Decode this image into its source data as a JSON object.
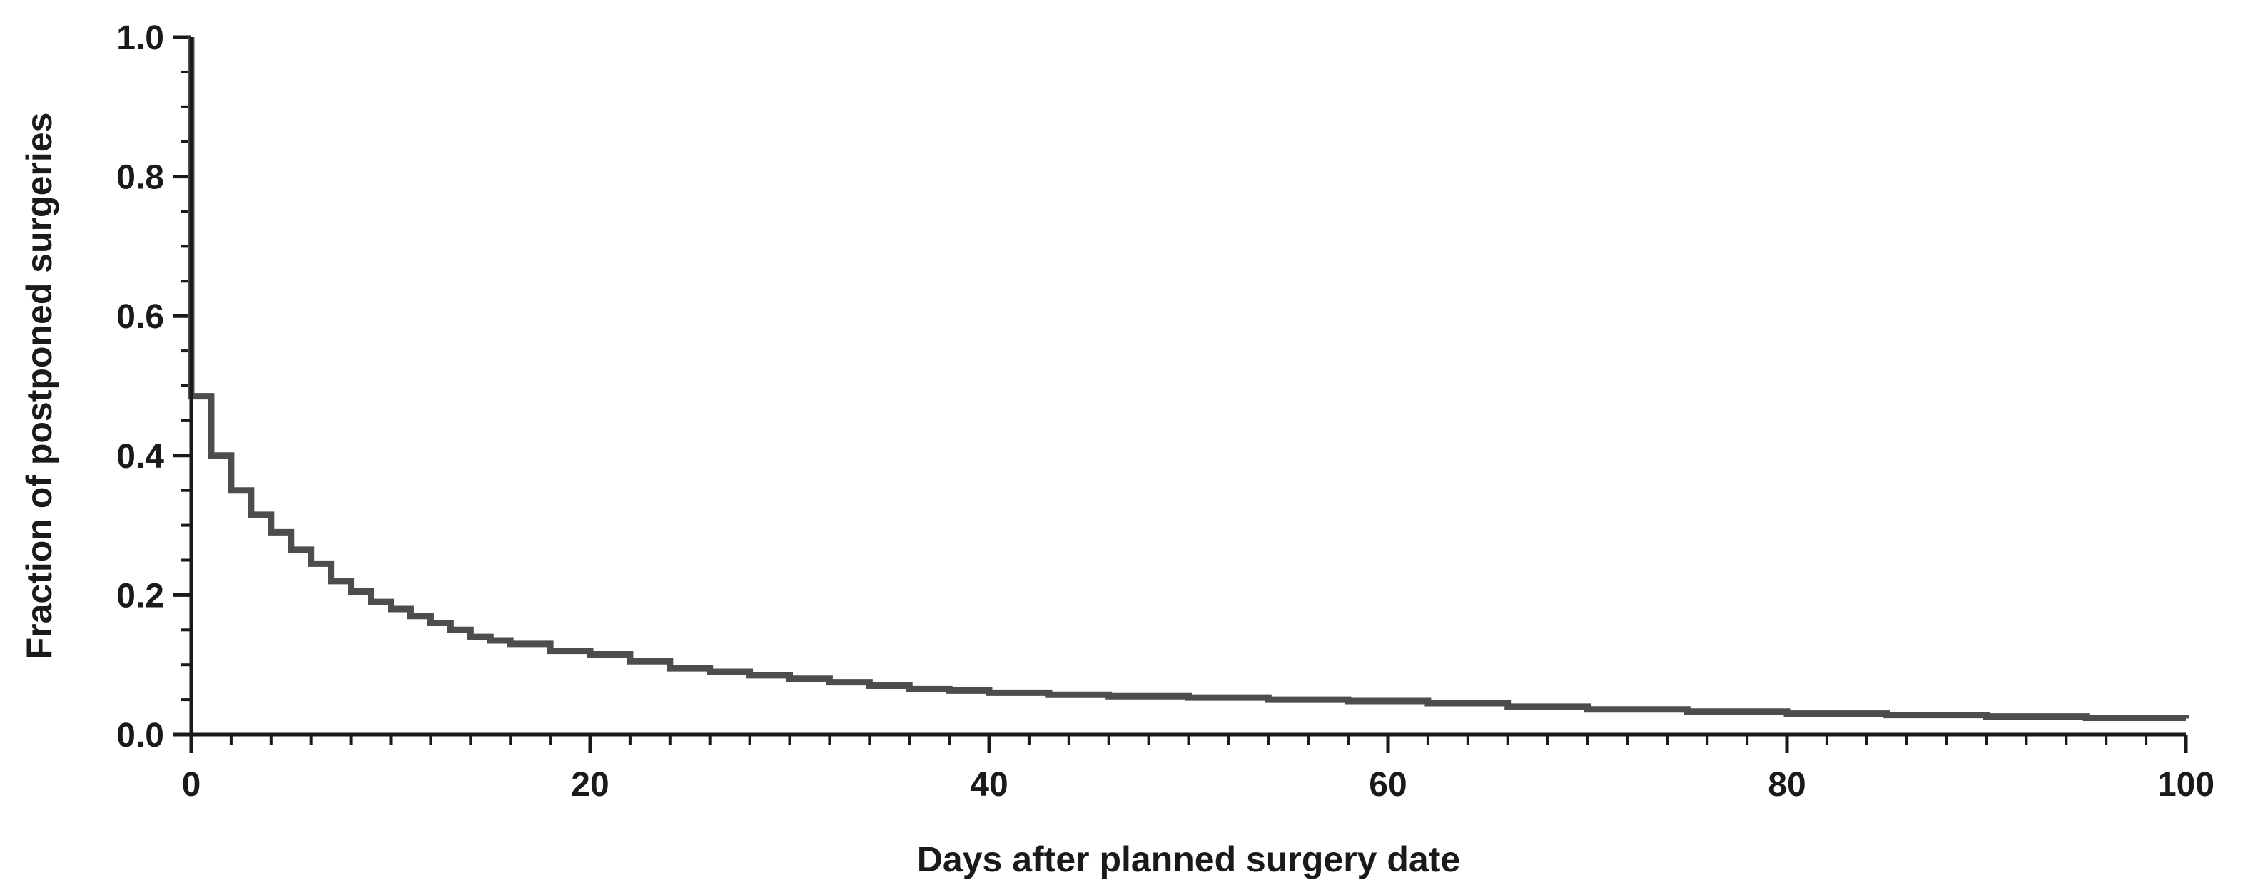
{
  "chart_data": {
    "type": "line",
    "step": true,
    "xlabel": "Days after planned surgery date",
    "ylabel": "Fraction of postponed surgeries",
    "xlim": [
      0,
      100
    ],
    "ylim": [
      0,
      1.0
    ],
    "x_major_ticks": [
      0,
      20,
      40,
      60,
      80,
      100
    ],
    "x_tick_labels": [
      "0",
      "20",
      "40",
      "60",
      "80",
      "100"
    ],
    "x_minor_step": 2,
    "y_major_ticks": [
      0,
      0.2,
      0.4,
      0.6,
      0.8,
      1.0
    ],
    "y_tick_labels": [
      "0.0",
      "0.2",
      "0.4",
      "0.6",
      "0.8",
      "1.0"
    ],
    "y_minor_step": 0.05,
    "grid": false,
    "line_color": "#4d4d4d",
    "axis_color": "#1a1a1a",
    "series": [
      {
        "x": [
          0,
          0,
          1,
          2,
          3,
          4,
          5,
          6,
          7,
          8,
          9,
          10,
          11,
          12,
          13,
          14,
          15,
          16,
          18,
          20,
          22,
          24,
          26,
          28,
          30,
          32,
          34,
          36,
          38,
          40,
          43,
          46,
          50,
          54,
          58,
          62,
          66,
          70,
          75,
          80,
          85,
          90,
          95,
          100
        ],
        "y": [
          1.0,
          0.485,
          0.4,
          0.35,
          0.315,
          0.29,
          0.265,
          0.245,
          0.22,
          0.205,
          0.19,
          0.18,
          0.17,
          0.16,
          0.15,
          0.14,
          0.135,
          0.13,
          0.12,
          0.115,
          0.105,
          0.095,
          0.09,
          0.085,
          0.08,
          0.075,
          0.07,
          0.065,
          0.063,
          0.06,
          0.057,
          0.055,
          0.053,
          0.05,
          0.048,
          0.045,
          0.04,
          0.036,
          0.033,
          0.03,
          0.028,
          0.026,
          0.024,
          0.023
        ]
      }
    ]
  }
}
